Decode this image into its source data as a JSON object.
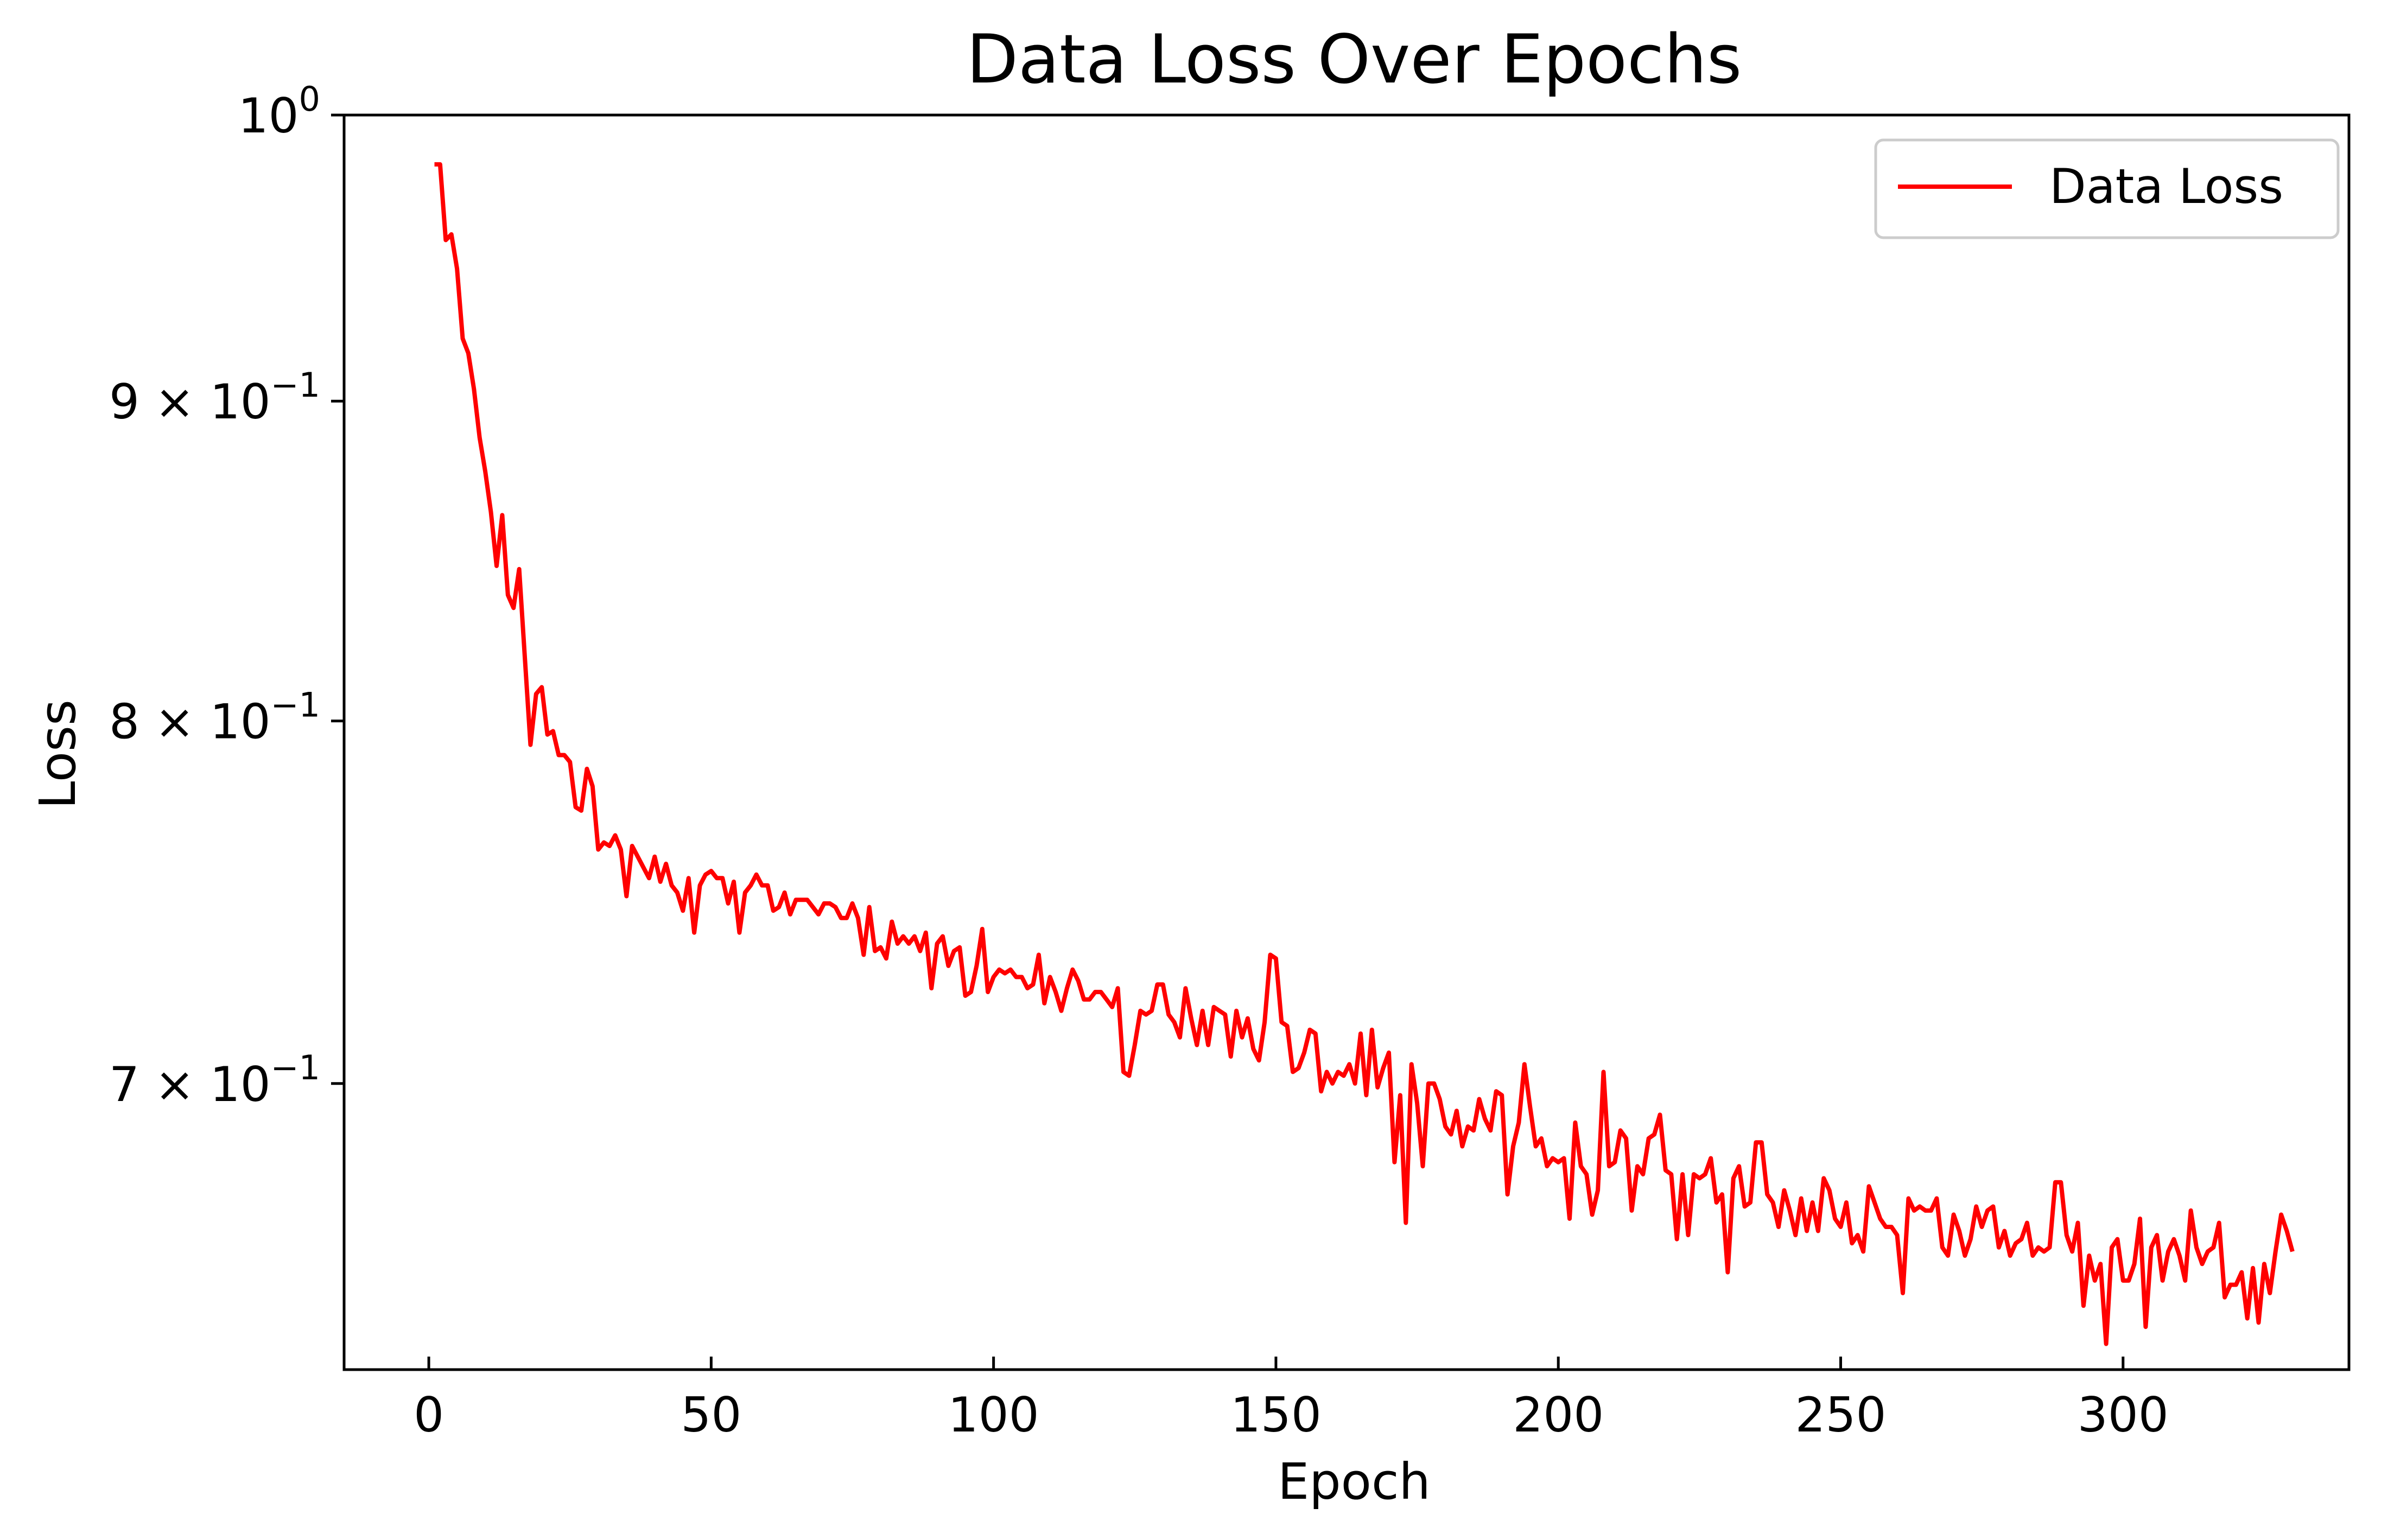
{
  "chart_data": {
    "type": "line",
    "title": "Data Loss Over Epochs",
    "xlabel": "Epoch",
    "ylabel": "Loss",
    "yscale": "log",
    "xlim": [
      -15,
      340
    ],
    "ylim": [
      0.63,
      1.0
    ],
    "grid": false,
    "legend_position": "top-right",
    "colors": {
      "line": "#ff0000",
      "axes": "#000000",
      "legend_border": "#cccccc"
    },
    "x_ticks": [
      0,
      50,
      100,
      150,
      200,
      250,
      300
    ],
    "x_tick_labels": [
      "0",
      "50",
      "100",
      "150",
      "200",
      "250",
      "300"
    ],
    "y_ticks": [
      {
        "value": 1.0,
        "mantissa": "",
        "base": "10",
        "exponent": "0"
      },
      {
        "value": 0.9,
        "mantissa": "9",
        "base": "10",
        "exponent": "−1"
      },
      {
        "value": 0.8,
        "mantissa": "8",
        "base": "10",
        "exponent": "−1"
      },
      {
        "value": 0.7,
        "mantissa": "7",
        "base": "10",
        "exponent": "−1"
      }
    ],
    "series": [
      {
        "name": "Data Loss",
        "x_start": 1,
        "x_step": 1,
        "values": [
          0.982,
          0.982,
          0.955,
          0.957,
          0.945,
          0.921,
          0.916,
          0.904,
          0.888,
          0.877,
          0.864,
          0.847,
          0.863,
          0.838,
          0.834,
          0.846,
          0.819,
          0.793,
          0.808,
          0.81,
          0.796,
          0.797,
          0.79,
          0.79,
          0.788,
          0.775,
          0.774,
          0.786,
          0.781,
          0.763,
          0.765,
          0.764,
          0.767,
          0.763,
          0.75,
          0.764,
          0.761,
          0.758,
          0.755,
          0.761,
          0.754,
          0.759,
          0.753,
          0.751,
          0.746,
          0.755,
          0.74,
          0.753,
          0.756,
          0.757,
          0.755,
          0.755,
          0.748,
          0.754,
          0.74,
          0.751,
          0.753,
          0.756,
          0.753,
          0.753,
          0.746,
          0.747,
          0.751,
          0.745,
          0.749,
          0.749,
          0.749,
          0.747,
          0.745,
          0.748,
          0.748,
          0.747,
          0.744,
          0.744,
          0.748,
          0.744,
          0.734,
          0.747,
          0.735,
          0.736,
          0.733,
          0.743,
          0.737,
          0.739,
          0.737,
          0.739,
          0.735,
          0.74,
          0.725,
          0.737,
          0.739,
          0.731,
          0.735,
          0.736,
          0.723,
          0.724,
          0.731,
          0.741,
          0.724,
          0.728,
          0.73,
          0.729,
          0.73,
          0.728,
          0.728,
          0.725,
          0.726,
          0.734,
          0.721,
          0.728,
          0.724,
          0.719,
          0.725,
          0.73,
          0.727,
          0.722,
          0.722,
          0.724,
          0.724,
          0.722,
          0.72,
          0.725,
          0.703,
          0.702,
          0.71,
          0.719,
          0.718,
          0.719,
          0.726,
          0.726,
          0.718,
          0.716,
          0.712,
          0.725,
          0.717,
          0.71,
          0.719,
          0.71,
          0.72,
          0.719,
          0.718,
          0.707,
          0.719,
          0.712,
          0.717,
          0.709,
          0.706,
          0.716,
          0.734,
          0.733,
          0.716,
          0.715,
          0.703,
          0.704,
          0.708,
          0.714,
          0.713,
          0.698,
          0.703,
          0.7,
          0.703,
          0.702,
          0.705,
          0.7,
          0.713,
          0.697,
          0.714,
          0.699,
          0.704,
          0.708,
          0.68,
          0.697,
          0.665,
          0.705,
          0.695,
          0.679,
          0.7,
          0.7,
          0.696,
          0.689,
          0.687,
          0.693,
          0.684,
          0.689,
          0.688,
          0.696,
          0.691,
          0.688,
          0.698,
          0.697,
          0.672,
          0.684,
          0.69,
          0.705,
          0.694,
          0.684,
          0.686,
          0.679,
          0.681,
          0.68,
          0.681,
          0.666,
          0.69,
          0.679,
          0.677,
          0.667,
          0.673,
          0.703,
          0.679,
          0.68,
          0.688,
          0.686,
          0.668,
          0.679,
          0.677,
          0.686,
          0.687,
          0.692,
          0.678,
          0.677,
          0.661,
          0.677,
          0.662,
          0.677,
          0.676,
          0.677,
          0.681,
          0.67,
          0.672,
          0.653,
          0.676,
          0.679,
          0.669,
          0.67,
          0.685,
          0.685,
          0.672,
          0.67,
          0.664,
          0.673,
          0.668,
          0.662,
          0.671,
          0.663,
          0.67,
          0.663,
          0.676,
          0.673,
          0.666,
          0.664,
          0.67,
          0.66,
          0.662,
          0.658,
          0.674,
          0.67,
          0.666,
          0.664,
          0.664,
          0.662,
          0.648,
          0.671,
          0.668,
          0.669,
          0.668,
          0.668,
          0.671,
          0.659,
          0.657,
          0.667,
          0.663,
          0.657,
          0.661,
          0.669,
          0.664,
          0.668,
          0.669,
          0.659,
          0.663,
          0.657,
          0.66,
          0.661,
          0.665,
          0.657,
          0.659,
          0.658,
          0.659,
          0.675,
          0.675,
          0.662,
          0.658,
          0.665,
          0.645,
          0.657,
          0.651,
          0.655,
          0.636,
          0.659,
          0.661,
          0.651,
          0.651,
          0.655,
          0.666,
          0.64,
          0.659,
          0.662,
          0.651,
          0.658,
          0.661,
          0.657,
          0.651,
          0.668,
          0.659,
          0.655,
          0.658,
          0.659,
          0.665,
          0.647,
          0.65,
          0.65,
          0.653,
          0.642,
          0.654,
          0.641,
          0.655,
          0.648,
          0.658,
          0.667,
          0.663,
          0.658
        ]
      }
    ]
  }
}
